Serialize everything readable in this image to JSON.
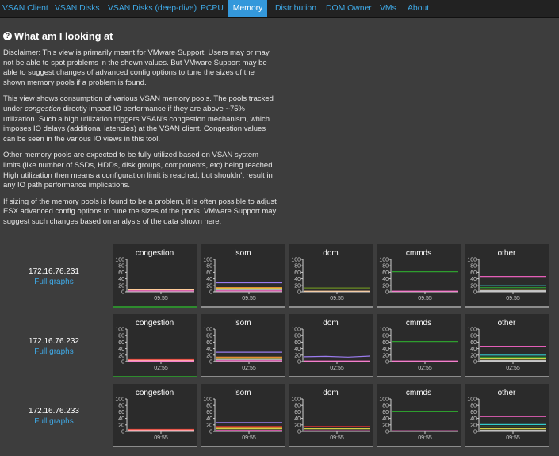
{
  "nav": {
    "tabs": [
      "VSAN Client",
      "VSAN Disks",
      "VSAN Disks (deep-dive)",
      "PCPU",
      "Memory",
      "Distribution",
      "DOM Owner",
      "VMs",
      "About"
    ],
    "active": "Memory"
  },
  "info": {
    "icon": "question-circle-icon",
    "title": "What am I looking at",
    "p1": "Disclaimer: This view is primarily meant for VMware Support. Users may or may not be able to spot problems in the shown values. But VMware Support may be able to suggest changes of advanced config options to tune the sizes of the shown memory pools if a problem is found.",
    "p2_before": "This view shows consumption of various VSAN memory pools. The pools tracked under ",
    "p2_em": "congestion",
    "p2_after": " directly impact IO performance if they are above ~75% utilization. Such a high utilization triggers VSAN's congestion mechanism, which imposes IO delays (additional latencies) at the VSAN client. Congestion values can be seen in the various IO views in this tool.",
    "p3": "Other memory pools are expected to be fully utilized based on VSAN system limits (like number of SSDs, HDDs, disk groups, components, etc) being reached. High utilization then means a configuration limit is reached, but shouldn't result in any IO path performance implications.",
    "p4": "If sizing of the memory pools is found to be a problem, it is often possible to adjust ESX advanced config options to tune the sizes of the pools. VMware Support may suggest such changes based on analysis of the data shown here."
  },
  "colors": {
    "pink": "#ff66cc",
    "purple": "#9b7cf0",
    "orange": "#ff9933",
    "yellow": "#e6e64d",
    "olive": "#6b8e23",
    "green": "#2e9e2e",
    "cyan": "#33cccc",
    "red": "#e03030",
    "white": "#f2f2f2",
    "peach": "#ffcc99",
    "gray": "#b0b0b0"
  },
  "full_graphs_label": "Full graphs",
  "hosts": [
    {
      "ip": "172.16.76.231",
      "charts": [
        {
          "title": "congestion",
          "time": "09:55",
          "green_bar": true,
          "lines": [
            {
              "color": "red",
              "values": [
                8,
                8,
                8,
                8
              ]
            },
            {
              "color": "peach",
              "values": [
                6,
                6,
                6,
                6
              ]
            },
            {
              "color": "pink",
              "values": [
                3,
                3,
                3,
                3
              ]
            }
          ]
        },
        {
          "title": "lsom",
          "time": "09:55",
          "green_bar": false,
          "lines": [
            {
              "color": "purple",
              "values": [
                28,
                28,
                28,
                28
              ]
            },
            {
              "color": "orange",
              "values": [
                13,
                13,
                13,
                13
              ]
            },
            {
              "color": "yellow",
              "values": [
                10,
                10,
                10,
                10
              ]
            },
            {
              "color": "gray",
              "values": [
                6,
                6,
                6,
                6
              ]
            },
            {
              "color": "pink",
              "values": [
                3,
                3,
                3,
                3
              ]
            }
          ]
        },
        {
          "title": "dom",
          "time": "09:55",
          "green_bar": false,
          "lines": [
            {
              "color": "olive",
              "values": [
                12,
                12,
                12,
                12
              ]
            },
            {
              "color": "peach",
              "values": [
                2,
                2,
                2,
                2
              ]
            }
          ]
        },
        {
          "title": "cmmds",
          "time": "09:55",
          "green_bar": false,
          "lines": [
            {
              "color": "green",
              "values": [
                62,
                62,
                62,
                62
              ]
            },
            {
              "color": "pink",
              "values": [
                2,
                2,
                2,
                2
              ]
            }
          ]
        },
        {
          "title": "other",
          "time": "09:55",
          "green_bar": false,
          "lines": [
            {
              "color": "pink",
              "values": [
                47,
                47,
                47,
                47
              ]
            },
            {
              "color": "cyan",
              "values": [
                20,
                20,
                20,
                20
              ]
            },
            {
              "color": "green",
              "values": [
                13,
                13,
                13,
                13
              ]
            },
            {
              "color": "yellow",
              "values": [
                8,
                8,
                8,
                8
              ]
            },
            {
              "color": "white",
              "values": [
                3,
                3,
                3,
                3
              ]
            }
          ]
        }
      ]
    },
    {
      "ip": "172.16.76.232",
      "charts": [
        {
          "title": "congestion",
          "time": "02:55",
          "green_bar": true,
          "lines": [
            {
              "color": "red",
              "values": [
                6,
                6,
                6,
                6
              ]
            },
            {
              "color": "peach",
              "values": [
                4,
                4,
                4,
                4
              ]
            },
            {
              "color": "pink",
              "values": [
                2,
                2,
                2,
                2
              ]
            }
          ]
        },
        {
          "title": "lsom",
          "time": "02:55",
          "green_bar": false,
          "lines": [
            {
              "color": "purple",
              "values": [
                29,
                29,
                29,
                29
              ]
            },
            {
              "color": "orange",
              "values": [
                14,
                14,
                14,
                14
              ]
            },
            {
              "color": "yellow",
              "values": [
                10,
                10,
                10,
                10
              ]
            },
            {
              "color": "gray",
              "values": [
                6,
                6,
                6,
                6
              ]
            },
            {
              "color": "pink",
              "values": [
                3,
                3,
                3,
                3
              ]
            }
          ]
        },
        {
          "title": "dom",
          "time": "02:55",
          "green_bar": false,
          "lines": [
            {
              "color": "purple",
              "values": [
                15,
                16,
                14,
                17
              ]
            },
            {
              "color": "pink",
              "values": [
                2,
                2,
                2,
                2
              ]
            }
          ]
        },
        {
          "title": "cmmds",
          "time": "02:55",
          "green_bar": false,
          "lines": [
            {
              "color": "green",
              "values": [
                62,
                62,
                62,
                62
              ]
            },
            {
              "color": "pink",
              "values": [
                2,
                2,
                2,
                2
              ]
            }
          ]
        },
        {
          "title": "other",
          "time": "02:55",
          "green_bar": false,
          "lines": [
            {
              "color": "pink",
              "values": [
                47,
                47,
                47,
                47
              ]
            },
            {
              "color": "cyan",
              "values": [
                20,
                20,
                20,
                20
              ]
            },
            {
              "color": "green",
              "values": [
                14,
                14,
                14,
                14
              ]
            },
            {
              "color": "yellow",
              "values": [
                8,
                8,
                8,
                8
              ]
            },
            {
              "color": "white",
              "values": [
                3,
                3,
                3,
                3
              ]
            }
          ]
        }
      ]
    },
    {
      "ip": "172.16.76.233",
      "charts": [
        {
          "title": "congestion",
          "time": "09:55",
          "green_bar": false,
          "lines": [
            {
              "color": "red",
              "values": [
                6,
                6,
                6,
                6
              ]
            },
            {
              "color": "peach",
              "values": [
                4,
                4,
                4,
                4
              ]
            },
            {
              "color": "pink",
              "values": [
                2,
                2,
                2,
                2
              ]
            }
          ]
        },
        {
          "title": "lsom",
          "time": "09:55",
          "green_bar": false,
          "lines": [
            {
              "color": "purple",
              "values": [
                27,
                27,
                27,
                27
              ]
            },
            {
              "color": "red",
              "values": [
                15,
                15,
                15,
                15
              ]
            },
            {
              "color": "orange",
              "values": [
                12,
                12,
                12,
                12
              ]
            },
            {
              "color": "yellow",
              "values": [
                8,
                8,
                8,
                8
              ]
            },
            {
              "color": "pink",
              "values": [
                3,
                3,
                3,
                3
              ]
            }
          ]
        },
        {
          "title": "dom",
          "time": "09:55",
          "green_bar": false,
          "lines": [
            {
              "color": "red",
              "values": [
                15,
                15,
                15,
                15
              ]
            },
            {
              "color": "yellow",
              "values": [
                8,
                8,
                8,
                8
              ]
            },
            {
              "color": "pink",
              "values": [
                2,
                2,
                2,
                2
              ]
            }
          ]
        },
        {
          "title": "cmmds",
          "time": "09:55",
          "green_bar": false,
          "lines": [
            {
              "color": "green",
              "values": [
                62,
                62,
                62,
                62
              ]
            },
            {
              "color": "pink",
              "values": [
                2,
                2,
                2,
                2
              ]
            }
          ]
        },
        {
          "title": "other",
          "time": "09:55",
          "green_bar": false,
          "lines": [
            {
              "color": "pink",
              "values": [
                46,
                46,
                46,
                46
              ]
            },
            {
              "color": "cyan",
              "values": [
                21,
                21,
                21,
                21
              ]
            },
            {
              "color": "green",
              "values": [
                14,
                14,
                14,
                14
              ]
            },
            {
              "color": "yellow",
              "values": [
                8,
                8,
                8,
                8
              ]
            },
            {
              "color": "white",
              "values": [
                3,
                3,
                3,
                3
              ]
            }
          ]
        }
      ]
    }
  ],
  "chart_data": {
    "type": "line",
    "yticks": [
      "0",
      "20",
      "40",
      "60",
      "80",
      "100"
    ],
    "ylim": [
      0,
      100
    ],
    "grid": false
  }
}
